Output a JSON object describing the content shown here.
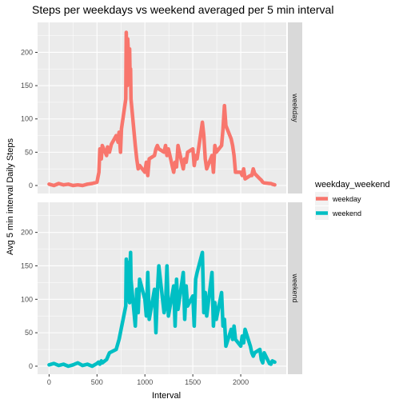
{
  "chart_data": {
    "type": "line",
    "title": "Steps per weekdays vs weekend averaged per 5 min interval",
    "xlabel": "Interval",
    "ylabel": "Avg 5 min interval Daily Steps",
    "xlim": [
      -120,
      2475
    ],
    "ylim": [
      -12,
      245
    ],
    "x_ticks": [
      0,
      500,
      1000,
      1500,
      2000
    ],
    "y_ticks": [
      0,
      50,
      100,
      150,
      200
    ],
    "grid": true,
    "facet_layout": "rows",
    "legend": {
      "title": "weekday_weekend",
      "position": "right",
      "entries": [
        {
          "label": "weekday",
          "color": "#F8766D"
        },
        {
          "label": "weekend",
          "color": "#00BFC4"
        }
      ]
    },
    "panels": [
      {
        "strip_label": "weekday",
        "series_label": "weekday",
        "color": "#F8766D",
        "x": [
          0,
          50,
          100,
          150,
          200,
          250,
          300,
          350,
          400,
          450,
          500,
          520,
          530,
          545,
          555,
          600,
          610,
          630,
          650,
          700,
          720,
          730,
          745,
          755,
          800,
          805,
          815,
          820,
          830,
          835,
          840,
          845,
          850,
          855,
          900,
          915,
          930,
          945,
          1000,
          1015,
          1030,
          1045,
          1100,
          1115,
          1130,
          1145,
          1200,
          1215,
          1230,
          1245,
          1300,
          1315,
          1330,
          1345,
          1400,
          1415,
          1430,
          1445,
          1500,
          1515,
          1530,
          1545,
          1600,
          1615,
          1630,
          1645,
          1700,
          1715,
          1730,
          1745,
          1800,
          1815,
          1830,
          1845,
          1900,
          1915,
          1930,
          1945,
          2000,
          2015,
          2030,
          2045,
          2100,
          2115,
          2130,
          2145,
          2200,
          2215,
          2230,
          2245,
          2300,
          2315,
          2330,
          2355
        ],
        "y": [
          2,
          0,
          3,
          1,
          2,
          0,
          1,
          0,
          2,
          3,
          5,
          20,
          55,
          40,
          60,
          45,
          58,
          50,
          62,
          75,
          65,
          80,
          50,
          85,
          130,
          230,
          150,
          220,
          190,
          170,
          205,
          160,
          175,
          130,
          60,
          40,
          25,
          30,
          20,
          35,
          15,
          40,
          45,
          55,
          60,
          55,
          50,
          60,
          45,
          55,
          20,
          35,
          28,
          60,
          25,
          40,
          35,
          50,
          55,
          30,
          45,
          40,
          95,
          75,
          40,
          25,
          45,
          20,
          60,
          50,
          60,
          85,
          120,
          90,
          70,
          60,
          45,
          20,
          20,
          15,
          25,
          10,
          15,
          15,
          25,
          18,
          10,
          8,
          5,
          4,
          3,
          3,
          2,
          1
        ]
      },
      {
        "strip_label": "weekend",
        "series_label": "weekend",
        "color": "#00BFC4",
        "x": [
          0,
          50,
          100,
          150,
          200,
          250,
          300,
          350,
          400,
          450,
          500,
          515,
          530,
          545,
          555,
          600,
          630,
          700,
          730,
          800,
          805,
          815,
          820,
          830,
          835,
          840,
          845,
          850,
          855,
          900,
          915,
          930,
          945,
          1000,
          1015,
          1030,
          1045,
          1100,
          1115,
          1130,
          1145,
          1200,
          1215,
          1230,
          1245,
          1300,
          1315,
          1330,
          1345,
          1400,
          1415,
          1430,
          1445,
          1500,
          1515,
          1530,
          1545,
          1600,
          1615,
          1630,
          1645,
          1700,
          1715,
          1730,
          1745,
          1800,
          1815,
          1830,
          1845,
          1900,
          1915,
          1930,
          1945,
          2000,
          2015,
          2030,
          2045,
          2100,
          2115,
          2130,
          2145,
          2200,
          2215,
          2230,
          2245,
          2300,
          2315,
          2330,
          2355
        ],
        "y": [
          2,
          4,
          1,
          3,
          0,
          2,
          5,
          1,
          3,
          0,
          4,
          6,
          3,
          8,
          5,
          10,
          20,
          25,
          40,
          90,
          160,
          140,
          155,
          110,
          100,
          95,
          150,
          170,
          130,
          60,
          115,
          80,
          130,
          100,
          75,
          140,
          70,
          115,
          50,
          110,
          150,
          80,
          90,
          150,
          75,
          120,
          60,
          130,
          85,
          140,
          70,
          120,
          90,
          105,
          60,
          130,
          140,
          170,
          80,
          110,
          75,
          140,
          60,
          95,
          70,
          110,
          60,
          70,
          30,
          55,
          40,
          60,
          40,
          30,
          45,
          35,
          55,
          30,
          20,
          15,
          20,
          25,
          10,
          5,
          20,
          4,
          3,
          8,
          6
        ]
      }
    ]
  }
}
